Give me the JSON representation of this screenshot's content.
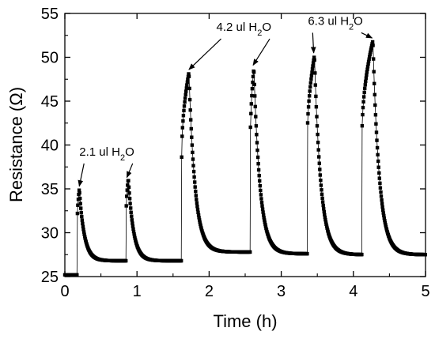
{
  "chart_data": {
    "type": "scatter",
    "xlabel": "Time (h)",
    "ylabel": "Resistance (Ω)",
    "xlim": [
      0,
      5
    ],
    "ylim": [
      25,
      55
    ],
    "x_ticks": [
      0,
      1,
      2,
      3,
      4,
      5
    ],
    "y_ticks": [
      25,
      30,
      35,
      40,
      45,
      50,
      55
    ],
    "grid": false,
    "marker": "square",
    "color": "#000000",
    "series": [
      {
        "baseline_start": {
          "x": 0.0,
          "y": 25.2
        },
        "pulses": [
          {
            "start": 0.17,
            "peak_x": 0.2,
            "peak": 35.0,
            "tail": 26.8,
            "from": 25.2
          },
          {
            "start": 0.85,
            "peak_x": 0.88,
            "peak": 36.2,
            "tail": 26.8,
            "from": 26.8
          },
          {
            "start": 1.62,
            "peak_x": 1.72,
            "peak": 48.3,
            "tail": 27.8,
            "from": 26.8
          },
          {
            "start": 2.57,
            "peak_x": 2.62,
            "peak": 48.8,
            "tail": 27.6,
            "from": 27.8
          },
          {
            "start": 3.36,
            "peak_x": 3.46,
            "peak": 50.2,
            "tail": 27.5,
            "from": 27.6
          },
          {
            "start": 4.12,
            "peak_x": 4.27,
            "peak": 51.9,
            "tail": 27.5,
            "from": 27.5
          }
        ],
        "end": {
          "x": 5.0,
          "y": 27.5
        }
      }
    ],
    "annotations": [
      {
        "label": "2.1 ul H",
        "sub": "2",
        "suffix": "O",
        "x": 0.2,
        "y": 38.8,
        "arrows": [
          [
            0.2,
            35.3
          ],
          [
            0.86,
            36.3
          ]
        ]
      },
      {
        "label": "4.2 ul H",
        "sub": "2",
        "suffix": "O",
        "x": 2.1,
        "y": 53.0,
        "arrows": [
          [
            1.72,
            48.6
          ],
          [
            2.61,
            49.1
          ]
        ]
      },
      {
        "label": "6.3 ul H",
        "sub": "2",
        "suffix": "O",
        "x": 3.37,
        "y": 53.7,
        "arrows": [
          [
            3.45,
            50.5
          ],
          [
            4.26,
            52.2
          ]
        ]
      }
    ]
  }
}
